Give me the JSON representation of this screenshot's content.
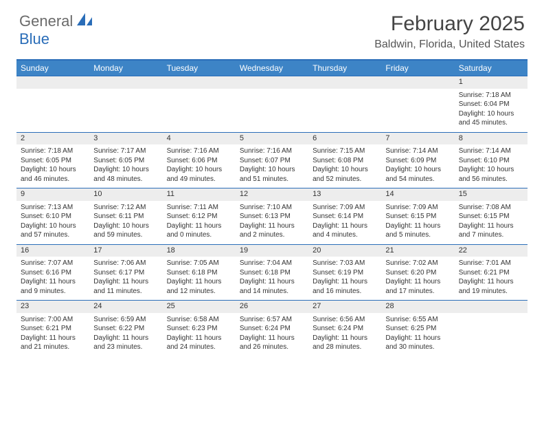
{
  "brand": {
    "part1": "General",
    "part2": "Blue"
  },
  "title": "February 2025",
  "location": "Baldwin, Florida, United States",
  "headers": [
    "Sunday",
    "Monday",
    "Tuesday",
    "Wednesday",
    "Thursday",
    "Friday",
    "Saturday"
  ],
  "colors": {
    "accent": "#2a6db8",
    "header_bg": "#3d84c6",
    "daynum_bg": "#ededed",
    "text": "#333333"
  },
  "weeks": [
    [
      null,
      null,
      null,
      null,
      null,
      null,
      {
        "n": "1",
        "sr": "Sunrise: 7:18 AM",
        "ss": "Sunset: 6:04 PM",
        "dl": "Daylight: 10 hours and 45 minutes."
      }
    ],
    [
      {
        "n": "2",
        "sr": "Sunrise: 7:18 AM",
        "ss": "Sunset: 6:05 PM",
        "dl": "Daylight: 10 hours and 46 minutes."
      },
      {
        "n": "3",
        "sr": "Sunrise: 7:17 AM",
        "ss": "Sunset: 6:05 PM",
        "dl": "Daylight: 10 hours and 48 minutes."
      },
      {
        "n": "4",
        "sr": "Sunrise: 7:16 AM",
        "ss": "Sunset: 6:06 PM",
        "dl": "Daylight: 10 hours and 49 minutes."
      },
      {
        "n": "5",
        "sr": "Sunrise: 7:16 AM",
        "ss": "Sunset: 6:07 PM",
        "dl": "Daylight: 10 hours and 51 minutes."
      },
      {
        "n": "6",
        "sr": "Sunrise: 7:15 AM",
        "ss": "Sunset: 6:08 PM",
        "dl": "Daylight: 10 hours and 52 minutes."
      },
      {
        "n": "7",
        "sr": "Sunrise: 7:14 AM",
        "ss": "Sunset: 6:09 PM",
        "dl": "Daylight: 10 hours and 54 minutes."
      },
      {
        "n": "8",
        "sr": "Sunrise: 7:14 AM",
        "ss": "Sunset: 6:10 PM",
        "dl": "Daylight: 10 hours and 56 minutes."
      }
    ],
    [
      {
        "n": "9",
        "sr": "Sunrise: 7:13 AM",
        "ss": "Sunset: 6:10 PM",
        "dl": "Daylight: 10 hours and 57 minutes."
      },
      {
        "n": "10",
        "sr": "Sunrise: 7:12 AM",
        "ss": "Sunset: 6:11 PM",
        "dl": "Daylight: 10 hours and 59 minutes."
      },
      {
        "n": "11",
        "sr": "Sunrise: 7:11 AM",
        "ss": "Sunset: 6:12 PM",
        "dl": "Daylight: 11 hours and 0 minutes."
      },
      {
        "n": "12",
        "sr": "Sunrise: 7:10 AM",
        "ss": "Sunset: 6:13 PM",
        "dl": "Daylight: 11 hours and 2 minutes."
      },
      {
        "n": "13",
        "sr": "Sunrise: 7:09 AM",
        "ss": "Sunset: 6:14 PM",
        "dl": "Daylight: 11 hours and 4 minutes."
      },
      {
        "n": "14",
        "sr": "Sunrise: 7:09 AM",
        "ss": "Sunset: 6:15 PM",
        "dl": "Daylight: 11 hours and 5 minutes."
      },
      {
        "n": "15",
        "sr": "Sunrise: 7:08 AM",
        "ss": "Sunset: 6:15 PM",
        "dl": "Daylight: 11 hours and 7 minutes."
      }
    ],
    [
      {
        "n": "16",
        "sr": "Sunrise: 7:07 AM",
        "ss": "Sunset: 6:16 PM",
        "dl": "Daylight: 11 hours and 9 minutes."
      },
      {
        "n": "17",
        "sr": "Sunrise: 7:06 AM",
        "ss": "Sunset: 6:17 PM",
        "dl": "Daylight: 11 hours and 11 minutes."
      },
      {
        "n": "18",
        "sr": "Sunrise: 7:05 AM",
        "ss": "Sunset: 6:18 PM",
        "dl": "Daylight: 11 hours and 12 minutes."
      },
      {
        "n": "19",
        "sr": "Sunrise: 7:04 AM",
        "ss": "Sunset: 6:18 PM",
        "dl": "Daylight: 11 hours and 14 minutes."
      },
      {
        "n": "20",
        "sr": "Sunrise: 7:03 AM",
        "ss": "Sunset: 6:19 PM",
        "dl": "Daylight: 11 hours and 16 minutes."
      },
      {
        "n": "21",
        "sr": "Sunrise: 7:02 AM",
        "ss": "Sunset: 6:20 PM",
        "dl": "Daylight: 11 hours and 17 minutes."
      },
      {
        "n": "22",
        "sr": "Sunrise: 7:01 AM",
        "ss": "Sunset: 6:21 PM",
        "dl": "Daylight: 11 hours and 19 minutes."
      }
    ],
    [
      {
        "n": "23",
        "sr": "Sunrise: 7:00 AM",
        "ss": "Sunset: 6:21 PM",
        "dl": "Daylight: 11 hours and 21 minutes."
      },
      {
        "n": "24",
        "sr": "Sunrise: 6:59 AM",
        "ss": "Sunset: 6:22 PM",
        "dl": "Daylight: 11 hours and 23 minutes."
      },
      {
        "n": "25",
        "sr": "Sunrise: 6:58 AM",
        "ss": "Sunset: 6:23 PM",
        "dl": "Daylight: 11 hours and 24 minutes."
      },
      {
        "n": "26",
        "sr": "Sunrise: 6:57 AM",
        "ss": "Sunset: 6:24 PM",
        "dl": "Daylight: 11 hours and 26 minutes."
      },
      {
        "n": "27",
        "sr": "Sunrise: 6:56 AM",
        "ss": "Sunset: 6:24 PM",
        "dl": "Daylight: 11 hours and 28 minutes."
      },
      {
        "n": "28",
        "sr": "Sunrise: 6:55 AM",
        "ss": "Sunset: 6:25 PM",
        "dl": "Daylight: 11 hours and 30 minutes."
      },
      null
    ]
  ]
}
